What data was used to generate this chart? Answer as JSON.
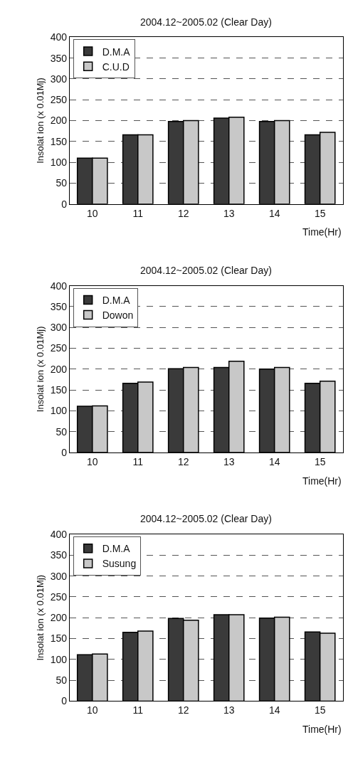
{
  "chart_data": [
    {
      "type": "bar",
      "title": "2004.12~2005.02 (Clear Day)",
      "xlabel": "Time(Hr)",
      "ylabel": "Insolat ion (x 0.01Mj)",
      "categories": [
        "10",
        "11",
        "12",
        "13",
        "14",
        "15"
      ],
      "series": [
        {
          "name": "D.M.A",
          "color": "#3a3a3a",
          "values": [
            110,
            166,
            198,
            206,
            198,
            166
          ]
        },
        {
          "name": "C.U.D",
          "color": "#c8c8c8",
          "values": [
            110,
            166,
            200,
            208,
            200,
            172
          ]
        }
      ],
      "ylim": [
        0,
        400
      ],
      "yticks": [
        0,
        50,
        100,
        150,
        200,
        250,
        300,
        350,
        400
      ],
      "grid": "y",
      "legend": "top left"
    },
    {
      "type": "bar",
      "title": "2004.12~2005.02 (Clear Day)",
      "xlabel": "Time(Hr)",
      "ylabel": "Insolat ion (x 0.01Mj)",
      "categories": [
        "10",
        "11",
        "12",
        "13",
        "14",
        "15"
      ],
      "series": [
        {
          "name": "D.M.A",
          "color": "#3a3a3a",
          "values": [
            111,
            166,
            201,
            204,
            200,
            166
          ]
        },
        {
          "name": "Dowon",
          "color": "#c8c8c8",
          "values": [
            112,
            169,
            204,
            219,
            204,
            171
          ]
        }
      ],
      "ylim": [
        0,
        400
      ],
      "yticks": [
        0,
        50,
        100,
        150,
        200,
        250,
        300,
        350,
        400
      ],
      "grid": "y",
      "legend": "top left"
    },
    {
      "type": "bar",
      "title": "2004.12~2005.02 (Clear Day)",
      "xlabel": "Time(Hr)",
      "ylabel": "Insolat ion (x 0.01Mj)",
      "categories": [
        "10",
        "11",
        "12",
        "13",
        "14",
        "15"
      ],
      "series": [
        {
          "name": "D.M.A",
          "color": "#3a3a3a",
          "values": [
            111,
            165,
            198,
            207,
            199,
            166
          ]
        },
        {
          "name": "Susung",
          "color": "#c8c8c8",
          "values": [
            113,
            168,
            194,
            207,
            201,
            163
          ]
        }
      ],
      "ylim": [
        0,
        400
      ],
      "yticks": [
        0,
        50,
        100,
        150,
        200,
        250,
        300,
        350,
        400
      ],
      "grid": "y",
      "legend": "top left"
    }
  ]
}
